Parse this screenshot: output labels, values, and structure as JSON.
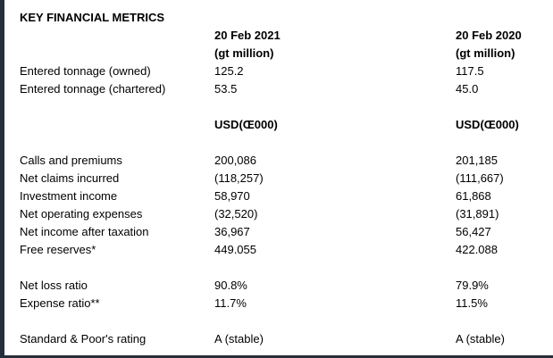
{
  "page": {
    "border_color": "#242e3c",
    "background_color": "#ffffff",
    "text_color": "#000000"
  },
  "metrics": {
    "title": "KEY FINANCIAL METRICS",
    "col_headers": {
      "c2021": "20 Feb 2021",
      "c2020": "20 Feb 2020"
    },
    "tonnage_unit": "(gt million)",
    "currency_unit": "USD(Œ000)",
    "tonnage": [
      {
        "label": "Entered tonnage (owned)",
        "v2021": "125.2",
        "v2020": "117.5"
      },
      {
        "label": "Entered tonnage (chartered)",
        "v2021": "53.5",
        "v2020": "45.0"
      }
    ],
    "financials": [
      {
        "label": "Calls and premiums",
        "v2021": "200,086",
        "v2020": "201,185"
      },
      {
        "label": "Net claims incurred",
        "v2021": "(118,257)",
        "v2020": "(111,667)"
      },
      {
        "label": "Investment income",
        "v2021": "58,970",
        "v2020": "61,868"
      },
      {
        "label": "Net operating expenses",
        "v2021": "(32,520)",
        "v2020": "(31,891)"
      },
      {
        "label": "Net income after taxation",
        "v2021": "36,967",
        "v2020": "56,427"
      },
      {
        "label": "Free reserves*",
        "v2021": "449,055",
        "v2020": "422,088"
      }
    ],
    "ratios": [
      {
        "label": "Net loss ratio",
        "v2021": "90.8%",
        "v2020": "79.9%"
      },
      {
        "label": "Expense ratio**",
        "v2021": "11.7%",
        "v2020": "11.5%"
      }
    ],
    "rating": {
      "label": "Standard & Poor's rating",
      "v2021": "A (stable)",
      "v2020": "A (stable)"
    }
  }
}
